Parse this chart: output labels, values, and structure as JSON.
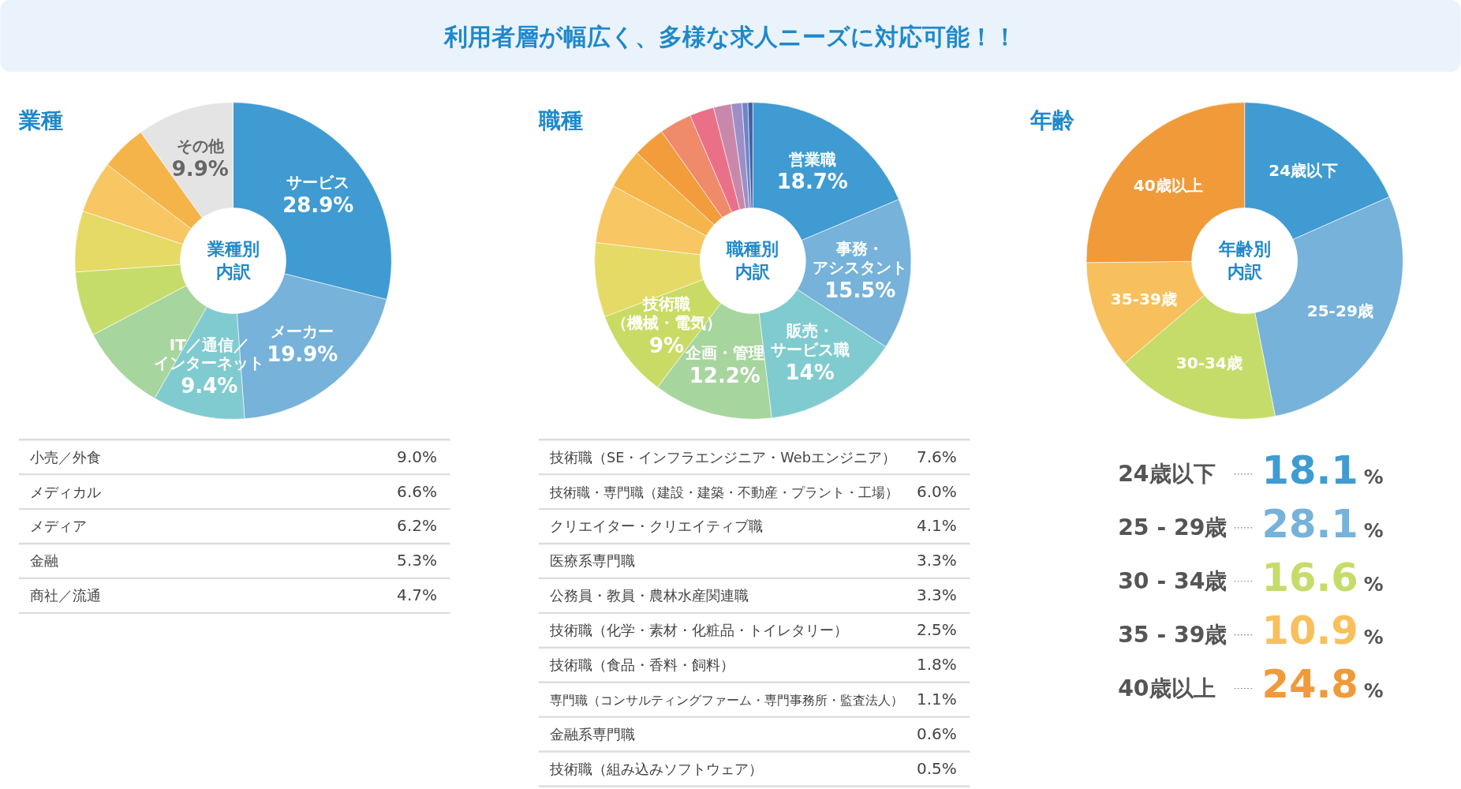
{
  "chart_data": [
    {
      "type": "donut",
      "title": "業種",
      "annotations": [
        "利用者層が幅広く、多様な求人ニーズに対応可能！！",
        "業種別内訳"
      ],
      "categories": [
        "サービス",
        "メーカー",
        "IT／通信／インターネット",
        null,
        null,
        null,
        null,
        null,
        "その他"
      ],
      "values": [
        28.9,
        19.9,
        9.4,
        9.0,
        6.6,
        6.2,
        5.3,
        4.7,
        9.9
      ],
      "colors": [
        "#3f9bd2",
        "#76b2d9",
        "#80cbd0",
        "#a7d59e",
        "#c6dc6a",
        "#e5da66",
        "#f8c663",
        "#f4b44a",
        "#e4e4e4"
      ],
      "value_labels": [
        "28.9%",
        "19.9%",
        "9.4%",
        null,
        null,
        null,
        null,
        null,
        "9.9%"
      ]
    },
    {
      "type": "other",
      "categories": [
        "小売／外食",
        "メディカル",
        "メディア",
        "金融",
        "商社／流通"
      ],
      "value_labels": [
        "9.0%",
        "6.6%",
        "6.2%",
        "5.3%",
        "4.7%"
      ]
    },
    {
      "type": "donut",
      "title": "職種",
      "annotations": [
        "職種別内訳"
      ],
      "categories": [
        "営業職",
        "事務・アシスタント",
        "販売・サービス職",
        "企画・管理",
        "技術職（機械・電気）",
        null,
        null,
        null,
        null,
        null,
        null,
        null,
        null,
        null,
        null
      ],
      "values": [
        18.7,
        15.5,
        14,
        12.2,
        9,
        7.6,
        6.0,
        4.1,
        3.3,
        3.3,
        2.5,
        1.8,
        1.1,
        0.6,
        0.5
      ],
      "colors": [
        "#3f9bd2",
        "#76b2d9",
        "#80cbd0",
        "#a7d59e",
        "#c9db64",
        "#e5da66",
        "#f8c663",
        "#f5b54a",
        "#f29c3c",
        "#ef8a6a",
        "#ea7088",
        "#c988aa",
        "#9d8fc6",
        "#6d86c6",
        "#3f63a9"
      ],
      "value_labels": [
        "18.7%",
        "15.5%",
        "14%",
        "12.2%",
        "9%",
        null,
        null,
        null,
        null,
        null,
        null,
        null,
        null,
        null,
        null
      ]
    },
    {
      "type": "other",
      "categories": [
        "技術職（SE・インフラエンジニア・Webエンジニア）",
        "技術職・専門職（建設・建築・不動産・プラント・工場）",
        "クリエイター・クリエイティブ職",
        "医療系専門職",
        "公務員・教員・農林水産関連職",
        "技術職（化学・素材・化粧品・トイレタリー）",
        "技術職（食品・香料・飼料）",
        "専門職（コンサルティングファーム・専門事務所・監査法人）",
        "金融系専門職",
        "技術職（組み込みソフトウェア）"
      ],
      "value_labels": [
        "7.6%",
        "6.0%",
        "4.1%",
        "3.3%",
        "3.3%",
        "2.5%",
        "1.8%",
        "1.1%",
        "0.6%",
        "0.5%"
      ]
    },
    {
      "type": "donut",
      "title": "年齢",
      "annotations": [
        "年齢別内訳"
      ],
      "categories": [
        "24歳以下",
        "25-29歳",
        "30-34歳",
        "35-39歳",
        "40歳以上"
      ],
      "values": [
        18.1,
        28.1,
        16.6,
        10.9,
        24.8
      ],
      "colors": [
        "#3f9bd2",
        "#76b2d9",
        "#c6dc6a",
        "#f8c05c",
        "#f09a3a"
      ]
    },
    {
      "type": "other",
      "categories": [
        "24歳以下",
        "25 - 29歳",
        "30 - 34歳",
        "35 - 39歳",
        "40歳以上"
      ],
      "value_labels": [
        "18.1%",
        "28.1%",
        "16.6%",
        "10.9%",
        "24.8%"
      ],
      "colors": [
        "#3f9bd2",
        "#76b2d9",
        "#c6dc6a",
        "#f8c05c",
        "#f09a3a"
      ]
    }
  ]
}
